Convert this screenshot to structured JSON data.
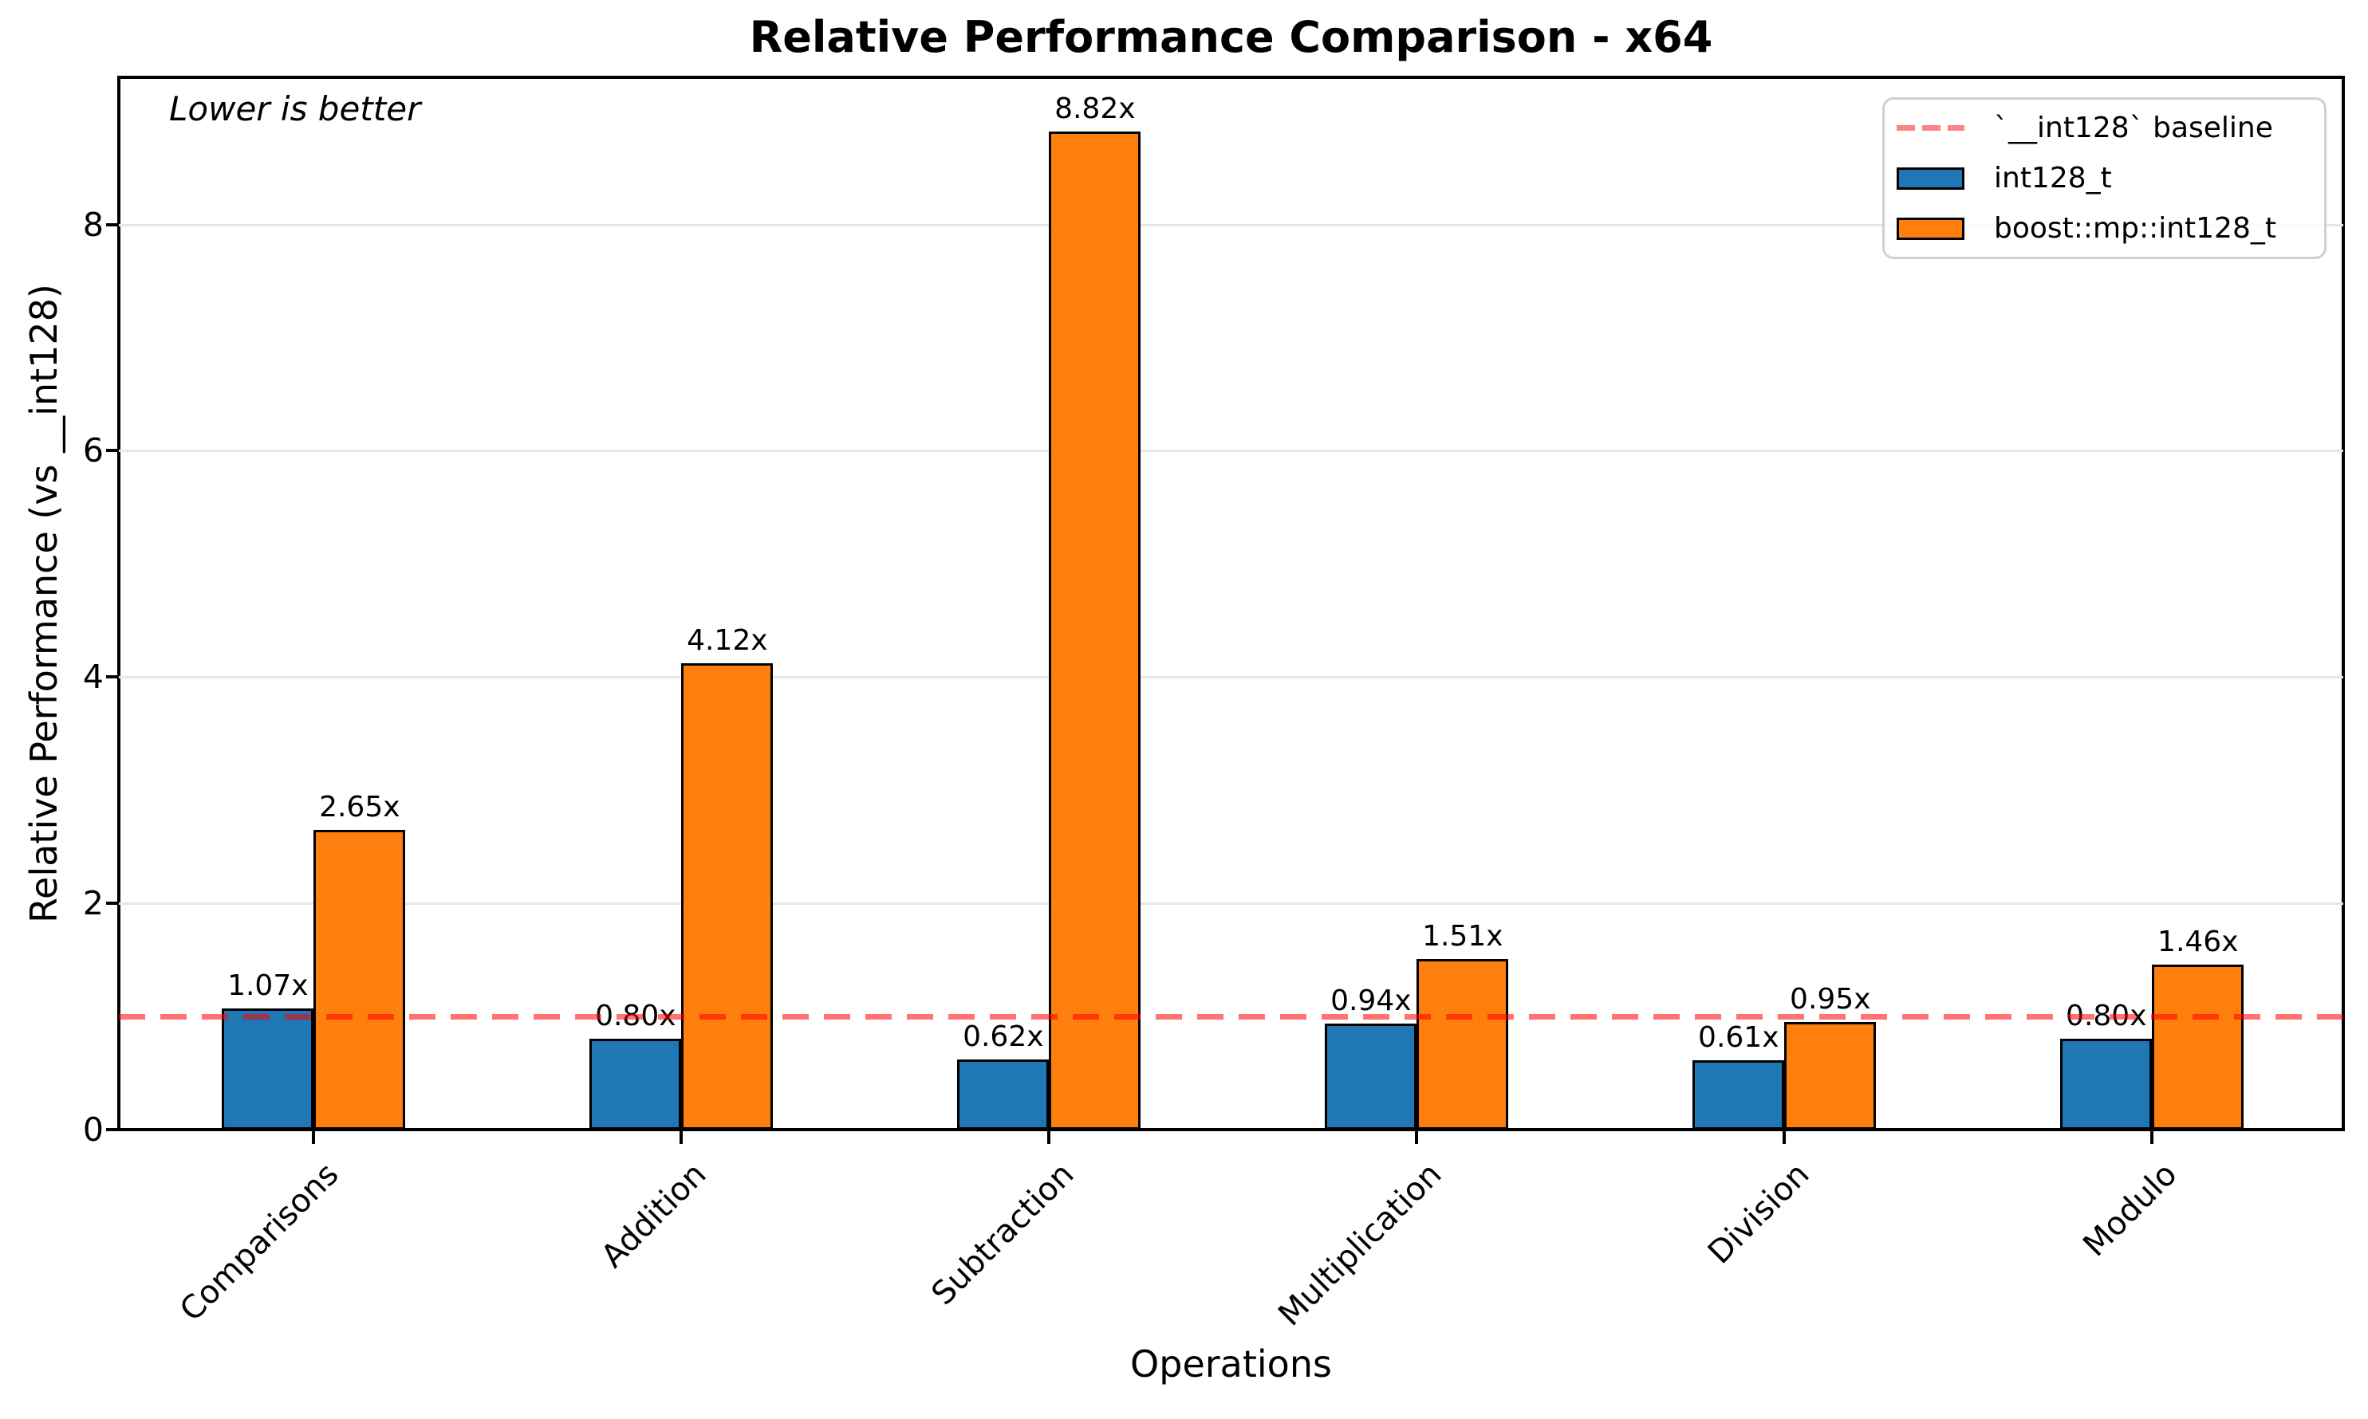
{
  "title": "Relative Performance Comparison - x64",
  "annotation": "Lower is better",
  "legend": [
    {
      "swatch": "dashed-line",
      "label": "`__int128` baseline"
    },
    {
      "swatch": "blue-rect",
      "label": "int128_t"
    },
    {
      "swatch": "orange-rect",
      "label": "boost::mp::int128_t"
    }
  ],
  "colors": {
    "blue": "#1f77b4",
    "orange": "#ff7f0e",
    "baseline_red": "#ff0000",
    "grid": "#e6e6e6",
    "legend_border": "#d0d0d0"
  },
  "chart_data": {
    "type": "bar",
    "title": "Relative Performance Comparison - x64",
    "xlabel": "Operations",
    "ylabel": "Relative Performance (vs __int128)",
    "categories": [
      "Comparisons",
      "Addition",
      "Subtraction",
      "Multiplication",
      "Division",
      "Modulo"
    ],
    "series": [
      {
        "name": "int128_t",
        "color": "#1f77b4",
        "values": [
          1.07,
          0.8,
          0.62,
          0.94,
          0.61,
          0.8
        ],
        "labels": [
          "1.07x",
          "0.80x",
          "0.62x",
          "0.94x",
          "0.61x",
          "0.80x"
        ]
      },
      {
        "name": "boost::mp::int128_t",
        "color": "#ff7f0e",
        "values": [
          2.65,
          4.12,
          8.82,
          1.51,
          0.95,
          1.46
        ],
        "labels": [
          "2.65x",
          "4.12x",
          "8.82x",
          "1.51x",
          "0.95x",
          "1.46x"
        ]
      }
    ],
    "baseline": {
      "value": 1,
      "label": "`__int128` baseline"
    },
    "yticks": [
      0,
      2,
      4,
      6,
      8
    ],
    "ylim": [
      0,
      9.3
    ],
    "grid": "horizontal",
    "legend_position": "upper right",
    "annotation": "Lower is better"
  }
}
